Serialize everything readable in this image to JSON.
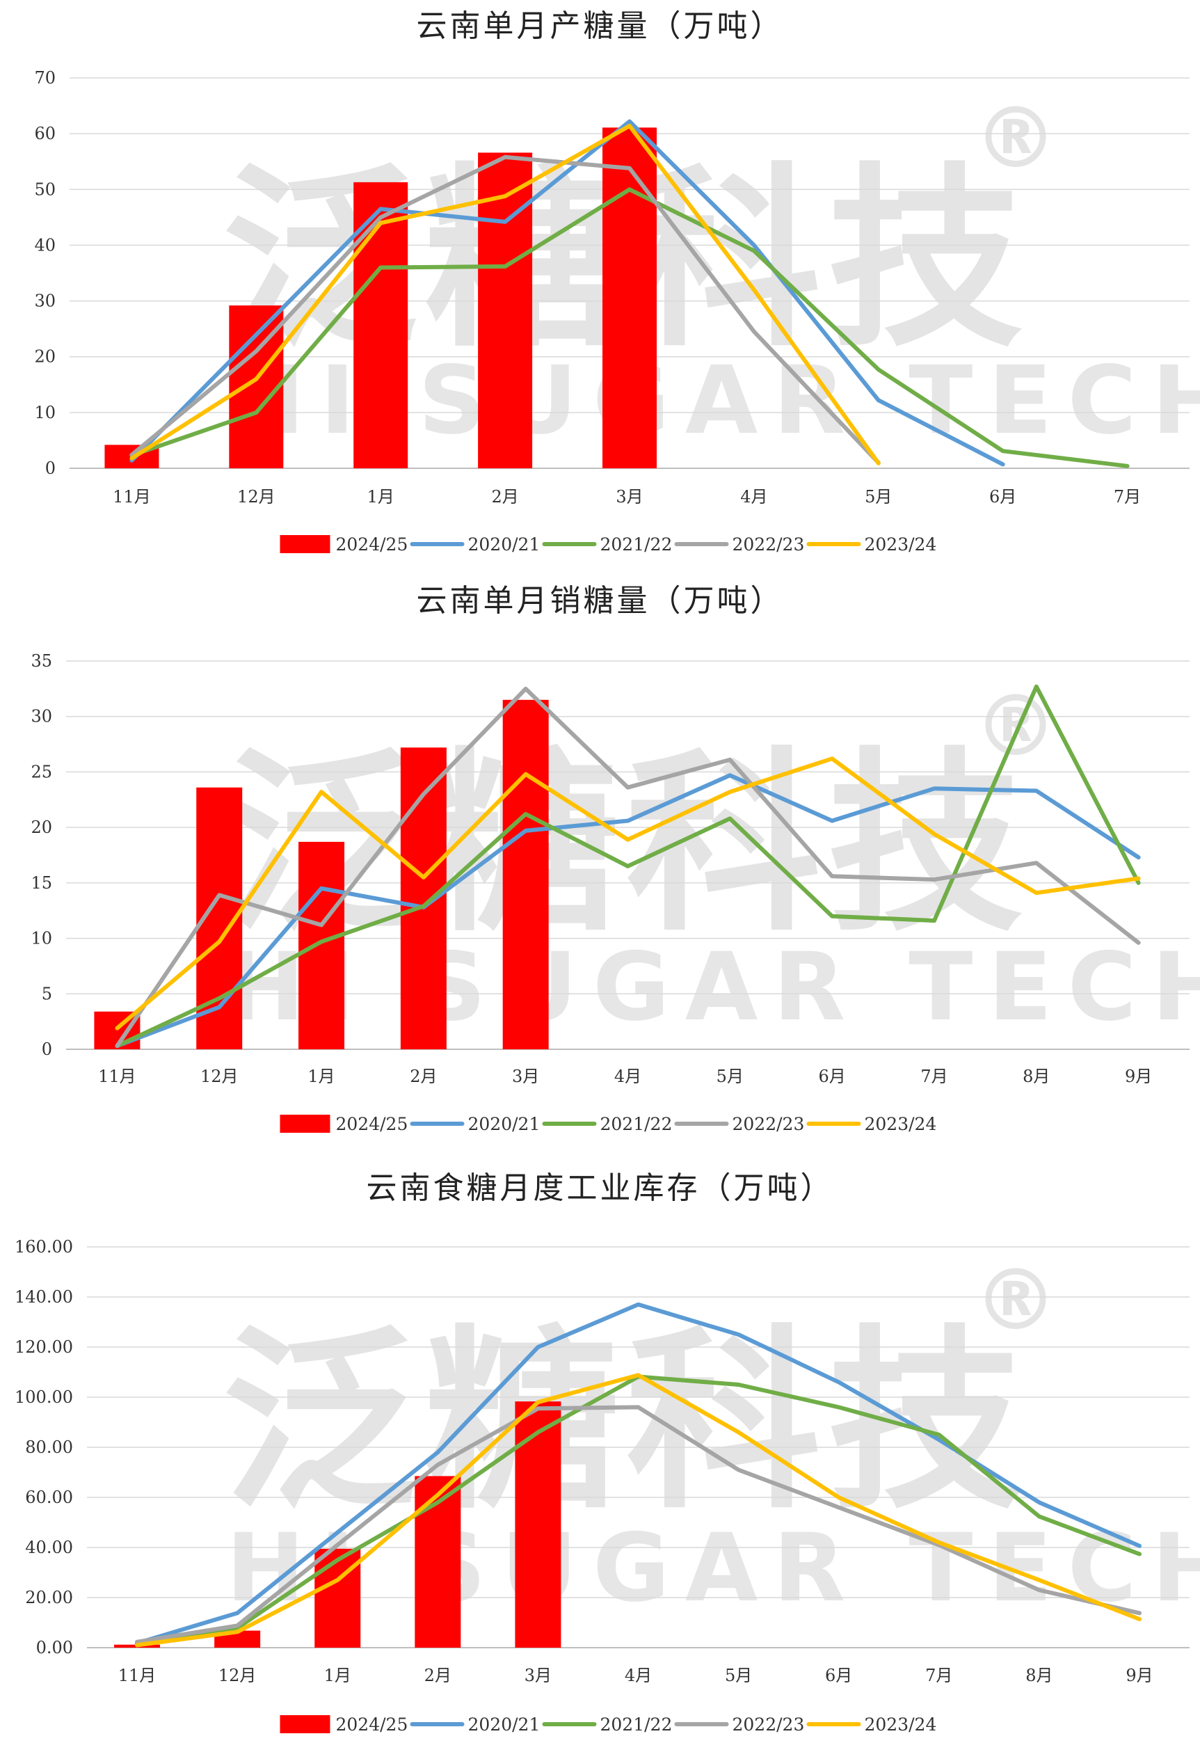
{
  "watermark": {
    "cn": "泛糖科技",
    "en": "HI SUGAR TECH",
    "mark": "®"
  },
  "series_colors": {
    "2024/25": "#ff0000",
    "2020/21": "#5b9bd5",
    "2021/22": "#70ad47",
    "2022/23": "#a5a5a5",
    "2023/24": "#ffc000"
  },
  "chart_data": [
    {
      "id": "production",
      "type": "bar+line",
      "title": "云南单月产糖量（万吨）",
      "categories": [
        "11月",
        "12月",
        "1月",
        "2月",
        "3月",
        "4月",
        "5月",
        "6月",
        "7月"
      ],
      "ylim": [
        0,
        70
      ],
      "yticks": [
        "0",
        "10",
        "20",
        "30",
        "40",
        "50",
        "60",
        "70"
      ],
      "ytick_values": [
        0,
        10,
        20,
        30,
        40,
        50,
        60,
        70
      ],
      "grid": true,
      "legend": "bottom",
      "bars": {
        "name": "2024/25",
        "values": [
          4.2,
          29.2,
          51.3,
          56.6,
          61.1,
          null,
          null,
          null,
          null
        ]
      },
      "series": [
        {
          "name": "2020/21",
          "values": [
            1.4,
            null,
            46.5,
            44.2,
            62.2,
            40.0,
            12.2,
            0.7,
            null
          ]
        },
        {
          "name": "2021/22",
          "values": [
            2.3,
            10.0,
            36.0,
            36.2,
            50.0,
            39.0,
            17.7,
            3.1,
            0.4
          ]
        },
        {
          "name": "2022/23",
          "values": [
            2.4,
            21.0,
            45.0,
            55.8,
            53.8,
            24.5,
            1.0,
            null,
            null
          ]
        },
        {
          "name": "2023/24",
          "values": [
            1.8,
            16.0,
            44.0,
            48.8,
            61.4,
            32.0,
            0.9,
            null,
            null
          ]
        }
      ]
    },
    {
      "id": "sales",
      "type": "bar+line",
      "title": "云南单月销糖量（万吨）",
      "categories": [
        "11月",
        "12月",
        "1月",
        "2月",
        "3月",
        "4月",
        "5月",
        "6月",
        "7月",
        "8月",
        "9月"
      ],
      "ylim": [
        0,
        35
      ],
      "yticks": [
        "0",
        "5",
        "10",
        "15",
        "20",
        "25",
        "30",
        "35"
      ],
      "ytick_values": [
        0,
        5,
        10,
        15,
        20,
        25,
        30,
        35
      ],
      "grid": true,
      "legend": "bottom",
      "bars": {
        "name": "2024/25",
        "values": [
          3.4,
          23.6,
          18.7,
          27.2,
          31.5,
          null,
          null,
          null,
          null,
          null,
          null
        ]
      },
      "series": [
        {
          "name": "2020/21",
          "values": [
            0.3,
            3.8,
            14.5,
            12.8,
            19.7,
            20.6,
            24.7,
            20.6,
            23.5,
            23.3,
            17.3
          ]
        },
        {
          "name": "2021/22",
          "values": [
            0.3,
            4.6,
            9.7,
            12.9,
            21.2,
            16.5,
            20.8,
            12.0,
            11.6,
            32.7,
            15.0
          ]
        },
        {
          "name": "2022/23",
          "values": [
            0.3,
            13.9,
            11.2,
            23.0,
            32.5,
            23.6,
            26.1,
            15.6,
            15.3,
            16.8,
            9.6
          ]
        },
        {
          "name": "2023/24",
          "values": [
            1.9,
            9.7,
            23.2,
            15.5,
            24.8,
            18.9,
            23.2,
            26.2,
            19.4,
            14.1,
            15.4
          ]
        }
      ]
    },
    {
      "id": "inventory",
      "type": "bar+line",
      "title": "云南食糖月度工业库存（万吨）",
      "categories": [
        "11月",
        "12月",
        "1月",
        "2月",
        "3月",
        "4月",
        "5月",
        "6月",
        "7月",
        "8月",
        "9月"
      ],
      "ylim": [
        0,
        160
      ],
      "yticks": [
        "0.00",
        "20.00",
        "40.00",
        "60.00",
        "80.00",
        "100.00",
        "120.00",
        "140.00",
        "160.00"
      ],
      "ytick_values": [
        0,
        20,
        40,
        60,
        80,
        100,
        120,
        140,
        160
      ],
      "grid": true,
      "legend": "bottom",
      "bars": {
        "name": "2024/25",
        "values": [
          1.2,
          6.8,
          39.5,
          68.5,
          98.3,
          null,
          null,
          null,
          null,
          null,
          null
        ]
      },
      "series": [
        {
          "name": "2020/21",
          "values": [
            1.8,
            13.8,
            46.0,
            78.0,
            120.0,
            137.0,
            125.0,
            106.0,
            83.0,
            58.0,
            40.6
          ]
        },
        {
          "name": "2021/22",
          "values": [
            1.5,
            7.8,
            35.0,
            58.0,
            86.0,
            108.2,
            105.0,
            96.0,
            85.0,
            52.4,
            37.4
          ]
        },
        {
          "name": "2022/23",
          "values": [
            2.3,
            8.8,
            41.0,
            73.0,
            95.5,
            96.0,
            71.0,
            56.0,
            41.0,
            23.0,
            13.8
          ]
        },
        {
          "name": "2023/24",
          "values": [
            1.0,
            6.3,
            27.0,
            61.0,
            98.0,
            108.8,
            86.0,
            60.0,
            42.0,
            27.0,
            11.4
          ]
        }
      ]
    }
  ]
}
